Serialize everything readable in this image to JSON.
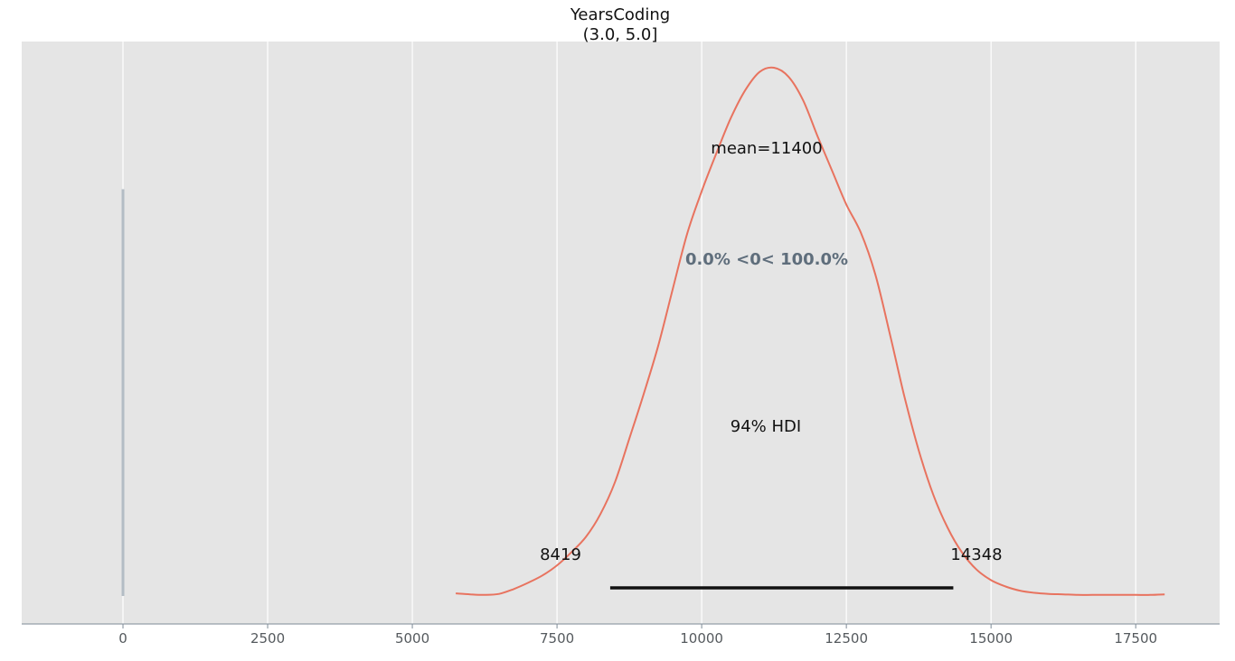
{
  "chart_data": {
    "type": "line",
    "title": "YearsCoding",
    "subtitle": "(3.0, 5.0]",
    "xlim": [
      -1750,
      18950
    ],
    "ylim": [
      0,
      1.0
    ],
    "xticks": [
      0,
      2500,
      5000,
      7500,
      10000,
      12500,
      15000,
      17500
    ],
    "xtick_labels": [
      "0",
      "2500",
      "5000",
      "7500",
      "10000",
      "12500",
      "15000",
      "17500"
    ],
    "grid": true,
    "colors": {
      "background": "#e5e5e5",
      "grid": "#ffffff",
      "density_line": "#e8735f",
      "hdi_line": "#111111",
      "reference_line": "#b3bcc5",
      "reference_text": "#5f6e7c",
      "axis_spine": "#7d8a96",
      "tick_label": "#555a5e"
    },
    "series": [
      {
        "x": [
          5750,
          6000,
          6250,
          6500,
          6750,
          7000,
          7250,
          7500,
          7750,
          8000,
          8250,
          8500,
          8750,
          9000,
          9250,
          9500,
          9750,
          10000,
          10250,
          10500,
          10750,
          11000,
          11250,
          11500,
          11750,
          12000,
          12250,
          12500,
          12750,
          13000,
          13250,
          13500,
          13750,
          14000,
          14250,
          14500,
          14750,
          15000,
          15250,
          15500,
          15750,
          16000,
          16250,
          16500,
          16750,
          17000,
          17250,
          17500,
          17750,
          18000
        ],
        "y": [
          0.005,
          0.003,
          0.002,
          0.004,
          0.013,
          0.025,
          0.039,
          0.058,
          0.083,
          0.112,
          0.155,
          0.215,
          0.298,
          0.383,
          0.474,
          0.581,
          0.686,
          0.766,
          0.837,
          0.904,
          0.957,
          0.992,
          1.0,
          0.983,
          0.939,
          0.871,
          0.806,
          0.741,
          0.688,
          0.609,
          0.497,
          0.379,
          0.276,
          0.192,
          0.129,
          0.082,
          0.05,
          0.03,
          0.018,
          0.01,
          0.006,
          0.004,
          0.003,
          0.002,
          0.002,
          0.002,
          0.002,
          0.002,
          0.002,
          0.003
        ]
      }
    ],
    "reference_value": 0,
    "hdi": [
      8419,
      14348
    ],
    "annotations": {
      "mean": "mean=11400",
      "reference": "0.0% <0< 100.0%",
      "hdi_label": "94% HDI",
      "hdi_low": "8419",
      "hdi_high": "14348"
    }
  }
}
